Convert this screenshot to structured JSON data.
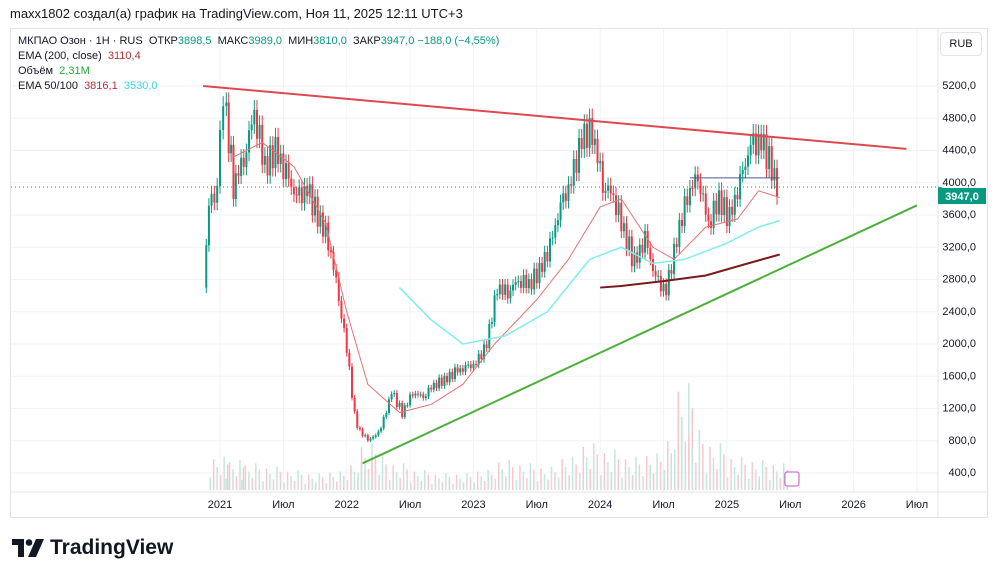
{
  "header": "maxx1802 создал(а) график на TradingView.com, Ноя 11, 2025 12:11 UTC+3",
  "legend": {
    "symbol": "МКПАО Озон · 1H · RUS",
    "open_label": "ОТКР",
    "open": "3898,5",
    "high_label": "МАКС",
    "high": "3989,0",
    "low_label": "МИН",
    "low": "3810,0",
    "close_label": "ЗАКР",
    "close": "3947,0",
    "change": "−188,0 (−4,55%)",
    "ema200_label": "EMA (200, close)",
    "ema200": "3110,4",
    "volume_label": "Объём",
    "volume": "2,31M",
    "ema50100_label": "EMA 50/100",
    "ema50": "3816,1",
    "ema100": "3530,0"
  },
  "currency": "RUB",
  "logo": "TradingView",
  "colors": {
    "up": "#089981",
    "down": "#f23645",
    "resistance": "#e04850",
    "support": "#4caf3a",
    "ema50": "#e57373",
    "ema100": "#80ecef",
    "ema200": "#7b1a1a"
  },
  "chart_data": {
    "type": "candlestick",
    "yticks": [
      "5200,0",
      "4800,0",
      "4400,0",
      "4000,0",
      "3600,0",
      "3200,0",
      "2800,0",
      "2400,0",
      "2000,0",
      "1600,0",
      "1200,0",
      "800,0",
      "400,0"
    ],
    "ytick_values": [
      5200,
      4800,
      4400,
      4000,
      3600,
      3200,
      2800,
      2400,
      2000,
      1600,
      1200,
      800,
      400
    ],
    "xticks": [
      {
        "m": 0,
        "label": "2021"
      },
      {
        "m": 6,
        "label": "Июл"
      },
      {
        "m": 12,
        "label": "2022"
      },
      {
        "m": 18,
        "label": "Июл"
      },
      {
        "m": 24,
        "label": "2023"
      },
      {
        "m": 30,
        "label": "Июл"
      },
      {
        "m": 36,
        "label": "2024"
      },
      {
        "m": 42,
        "label": "Июл"
      },
      {
        "m": 48,
        "label": "2025"
      },
      {
        "m": 54,
        "label": "Июл"
      },
      {
        "m": 60,
        "label": "2026"
      },
      {
        "m": 66,
        "label": "Июл"
      }
    ],
    "last_price": "3947,0",
    "last_value": 3947,
    "start_open": 2700,
    "closes": [
      [
        -1.3,
        2750
      ],
      [
        -0.8,
        3700
      ],
      [
        0,
        3900
      ],
      [
        0.6,
        5100
      ],
      [
        1.5,
        4000
      ],
      [
        2.5,
        4300
      ],
      [
        3.5,
        4900
      ],
      [
        4.5,
        4200
      ],
      [
        5.5,
        4400
      ],
      [
        6.5,
        4100
      ],
      [
        7.5,
        3800
      ],
      [
        8.5,
        3900
      ],
      [
        9.5,
        3600
      ],
      [
        10.5,
        3300
      ],
      [
        11.5,
        2600
      ],
      [
        12.5,
        1700
      ],
      [
        13,
        1100
      ],
      [
        13.5,
        900
      ],
      [
        14.5,
        800
      ],
      [
        15.5,
        950
      ],
      [
        16.5,
        1400
      ],
      [
        17.5,
        1150
      ],
      [
        18.5,
        1400
      ],
      [
        19.5,
        1350
      ],
      [
        20.5,
        1500
      ],
      [
        21.5,
        1550
      ],
      [
        22.5,
        1650
      ],
      [
        23.5,
        1700
      ],
      [
        24.5,
        1750
      ],
      [
        25.5,
        2000
      ],
      [
        26.5,
        2700
      ],
      [
        27.5,
        2650
      ],
      [
        28.5,
        2800
      ],
      [
        29.5,
        2750
      ],
      [
        30.5,
        2900
      ],
      [
        31.5,
        3200
      ],
      [
        32.5,
        3700
      ],
      [
        33.5,
        4000
      ],
      [
        34.5,
        4550
      ],
      [
        35.5,
        4650
      ],
      [
        36.5,
        4000
      ],
      [
        37.5,
        3850
      ],
      [
        38.5,
        3400
      ],
      [
        39.5,
        3000
      ],
      [
        40.5,
        3300
      ],
      [
        41.5,
        2800
      ],
      [
        42.5,
        2650
      ],
      [
        43.5,
        3300
      ],
      [
        44.5,
        3850
      ],
      [
        45.5,
        4100
      ],
      [
        46.5,
        3500
      ],
      [
        47.5,
        3800
      ],
      [
        48.5,
        3550
      ],
      [
        49.5,
        4000
      ],
      [
        50.5,
        4450
      ],
      [
        51.5,
        4500
      ],
      [
        52.5,
        4200
      ],
      [
        53,
        3947
      ]
    ],
    "volumes": [
      [
        -1,
        500
      ],
      [
        0.5,
        450
      ],
      [
        2,
        400
      ],
      [
        4,
        350
      ],
      [
        6,
        300
      ],
      [
        8,
        250
      ],
      [
        10,
        280
      ],
      [
        12,
        400
      ],
      [
        13,
        700
      ],
      [
        14,
        500
      ],
      [
        16,
        400
      ],
      [
        18,
        300
      ],
      [
        20,
        250
      ],
      [
        22,
        250
      ],
      [
        24,
        300
      ],
      [
        26,
        450
      ],
      [
        28,
        400
      ],
      [
        30,
        350
      ],
      [
        32,
        500
      ],
      [
        34,
        700
      ],
      [
        36,
        600
      ],
      [
        38,
        500
      ],
      [
        40,
        550
      ],
      [
        42,
        800
      ],
      [
        43,
        1600
      ],
      [
        44,
        900
      ],
      [
        46,
        700
      ],
      [
        48,
        500
      ],
      [
        50,
        450
      ],
      [
        52,
        400
      ]
    ],
    "ema50": [
      [
        1,
        4300
      ],
      [
        4,
        4500
      ],
      [
        7,
        4200
      ],
      [
        10,
        3500
      ],
      [
        12,
        2400
      ],
      [
        14,
        1500
      ],
      [
        17,
        1150
      ],
      [
        20,
        1250
      ],
      [
        23,
        1500
      ],
      [
        26,
        2000
      ],
      [
        30,
        2550
      ],
      [
        33,
        3050
      ],
      [
        36,
        3700
      ],
      [
        38,
        3800
      ],
      [
        41,
        3200
      ],
      [
        43,
        3050
      ],
      [
        46,
        3450
      ],
      [
        49,
        3550
      ],
      [
        51,
        3900
      ],
      [
        53,
        3816
      ]
    ],
    "ema100": [
      [
        17,
        2700
      ],
      [
        20,
        2300
      ],
      [
        23,
        2000
      ],
      [
        27,
        2100
      ],
      [
        31,
        2400
      ],
      [
        35,
        3050
      ],
      [
        38,
        3200
      ],
      [
        41,
        3000
      ],
      [
        44,
        3050
      ],
      [
        48,
        3250
      ],
      [
        51,
        3450
      ],
      [
        53,
        3530
      ]
    ],
    "ema200": [
      [
        36,
        2700
      ],
      [
        38,
        2720
      ],
      [
        42,
        2780
      ],
      [
        46,
        2850
      ],
      [
        50,
        3000
      ],
      [
        53,
        3110
      ]
    ],
    "resistance": [
      [
        -1.6,
        5200
      ],
      [
        65,
        4420
      ]
    ],
    "support": [
      [
        13.5,
        520
      ],
      [
        66,
        3720
      ]
    ],
    "level": {
      "from": 44.5,
      "to": 53,
      "value": 4060
    }
  }
}
